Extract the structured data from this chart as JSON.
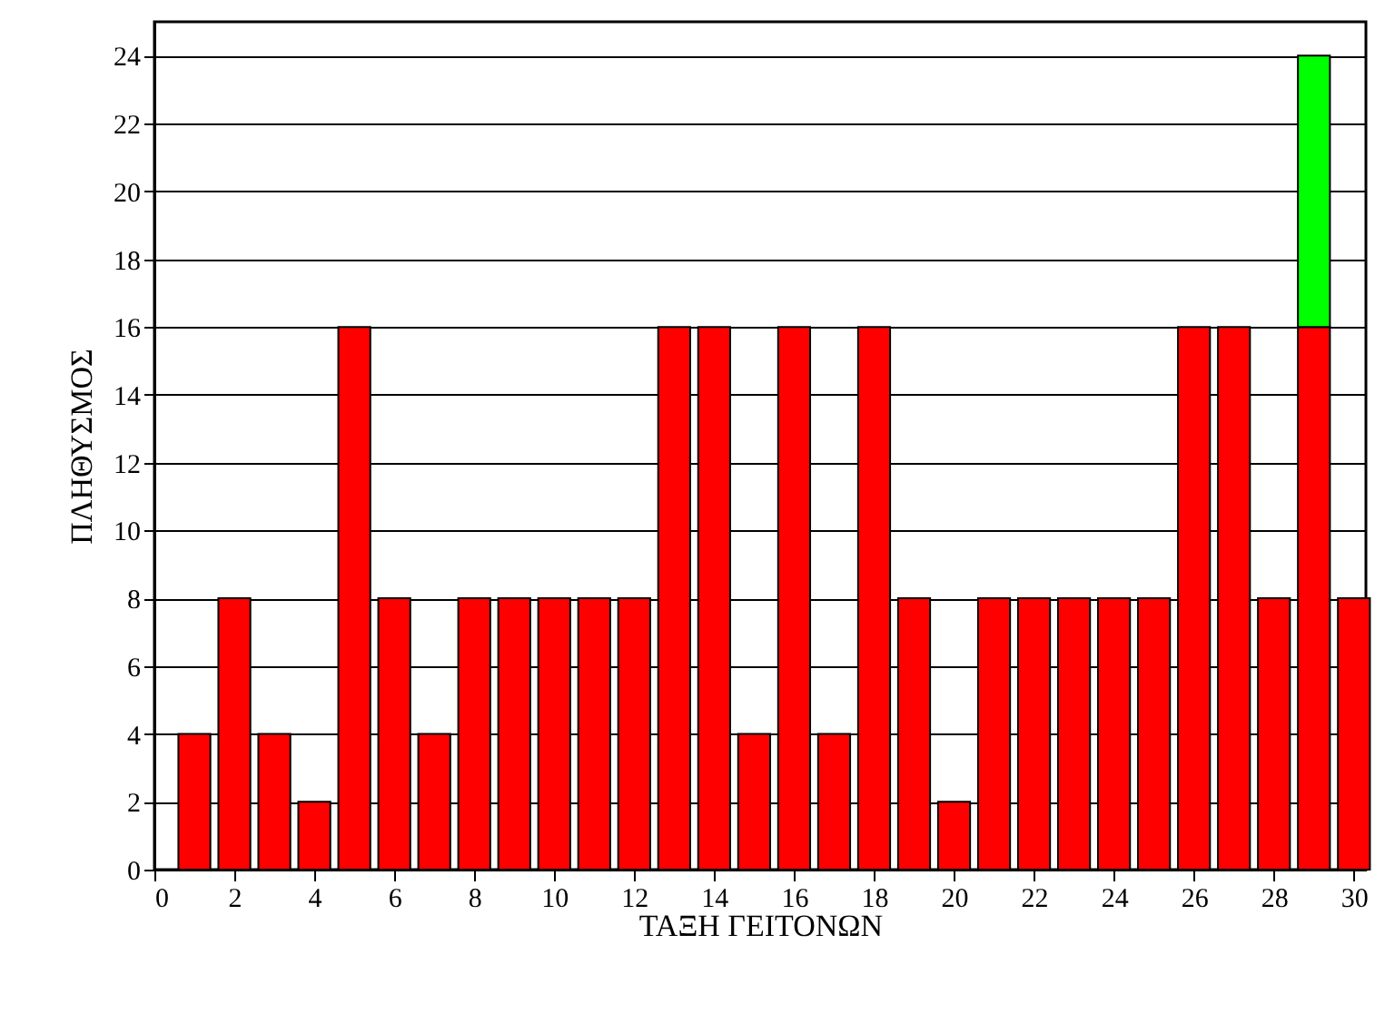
{
  "chart_data": {
    "type": "bar",
    "stacked": true,
    "xlabel": "ΤΑΞΗ ΓΕΙΤΟΝΩΝ",
    "ylabel": "ΠΛΗΘΥΣΜΟΣ",
    "x": [
      1,
      2,
      3,
      4,
      5,
      6,
      7,
      8,
      9,
      10,
      11,
      12,
      13,
      14,
      15,
      16,
      17,
      18,
      19,
      20,
      21,
      22,
      23,
      24,
      25,
      26,
      27,
      28,
      29,
      30
    ],
    "series": [
      {
        "color": "#ff0000",
        "values": [
          4,
          8,
          4,
          2,
          16,
          8,
          4,
          8,
          8,
          8,
          8,
          8,
          16,
          16,
          4,
          16,
          4,
          16,
          8,
          2,
          8,
          8,
          8,
          8,
          8,
          16,
          16,
          8,
          16,
          8
        ]
      },
      {
        "color": "#00ff00",
        "values": [
          null,
          null,
          null,
          null,
          null,
          null,
          null,
          null,
          null,
          null,
          null,
          null,
          null,
          null,
          null,
          null,
          null,
          null,
          null,
          null,
          null,
          null,
          null,
          null,
          null,
          null,
          null,
          null,
          8,
          null
        ]
      }
    ],
    "xlim": [
      0,
      30.3
    ],
    "xticks": [
      0,
      2,
      4,
      6,
      8,
      10,
      12,
      14,
      16,
      18,
      20,
      22,
      24,
      26,
      28,
      30
    ],
    "ylim": [
      0,
      25
    ],
    "yticks": [
      0,
      2,
      4,
      6,
      8,
      10,
      12,
      14,
      16,
      18,
      20,
      22,
      24
    ],
    "grid": "y"
  }
}
